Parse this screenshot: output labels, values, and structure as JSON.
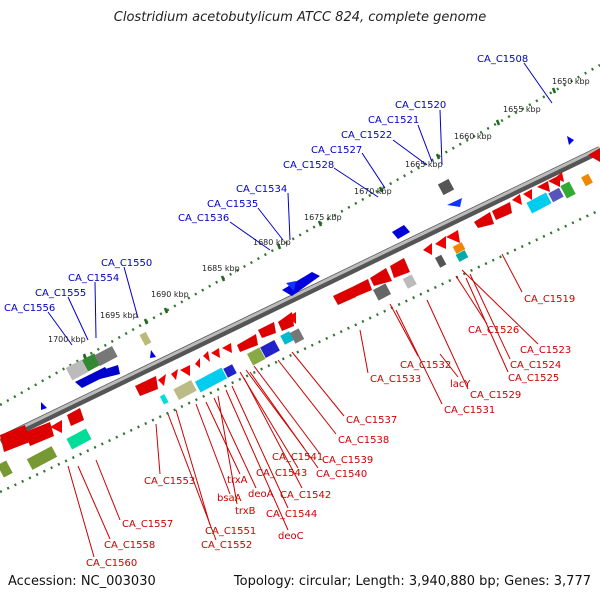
{
  "title": "Clostridium acetobutylicum ATCC 824, complete genome",
  "footer": {
    "accession": "Accession: NC_003030",
    "summary": "Topology: circular; Length: 3,940,880 bp; Genes: 3,777"
  },
  "colors": {
    "forward_gene": "#0000cc",
    "reverse_gene": "#cc0000",
    "backbone": "#888888",
    "scale_dots": "#226622"
  },
  "scale_labels": [
    "1650 kbp",
    "1655 kbp",
    "1660 kbp",
    "1665 kbp",
    "1670 kbp",
    "1675 kbp",
    "1680 kbp",
    "1685 kbp",
    "1690 kbp",
    "1695 kbp",
    "1700 kbp"
  ],
  "upper_labels": [
    "CA_C1508",
    "CA_C1520",
    "CA_C1521",
    "CA_C1522",
    "CA_C1527",
    "CA_C1528",
    "CA_C1534",
    "CA_C1535",
    "CA_C1536",
    "CA_C1550",
    "CA_C1554",
    "CA_C1555",
    "CA_C1556"
  ],
  "lower_labels": [
    "CA_C1519",
    "CA_C1526",
    "CA_C1523",
    "CA_C1524",
    "CA_C1525",
    "CA_C1529",
    "lacY",
    "CA_C1532",
    "CA_C1533",
    "CA_C1531",
    "CA_C1537",
    "CA_C1538",
    "CA_C1539",
    "CA_C1541",
    "CA_C1540",
    "CA_C1543",
    "CA_C1542",
    "CA_C1544",
    "deoC",
    "trxA",
    "deoA",
    "bsaA",
    "trxB",
    "CA_C1551",
    "CA_C1552",
    "CA_C1553",
    "CA_C1557",
    "CA_C1558",
    "CA_C1560"
  ]
}
